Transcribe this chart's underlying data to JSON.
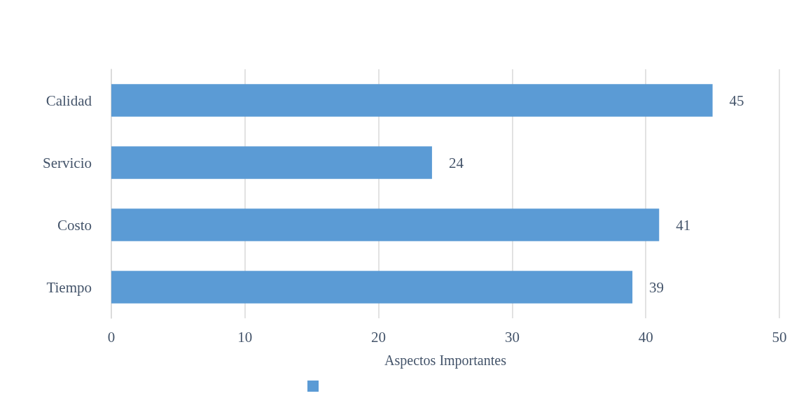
{
  "chart_data": {
    "type": "bar",
    "orientation": "horizontal",
    "categories": [
      "Calidad",
      "Servicio",
      "Costo",
      "Tiempo"
    ],
    "values": [
      45,
      24,
      41,
      39
    ],
    "color": "#5b9bd5",
    "xlim": [
      0,
      50
    ],
    "xticks": [
      0,
      10,
      20,
      30,
      40,
      50
    ],
    "xlabel": "Aspectos Importantes",
    "grid": "x",
    "data_labels": true
  }
}
